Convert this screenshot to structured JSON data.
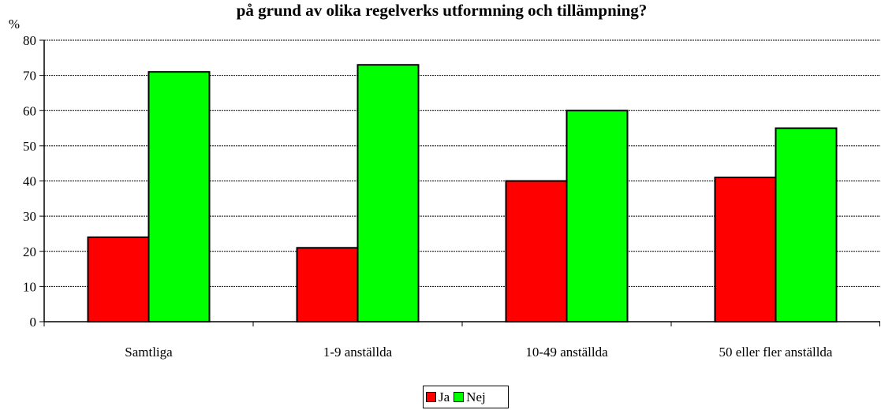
{
  "chart_data": {
    "type": "bar",
    "title": "på grund av olika regelverks utformning och tillämpning?",
    "ylabel": "%",
    "xlabel": "",
    "ylim": [
      0,
      80
    ],
    "yticks": [
      "0",
      "10",
      "20",
      "30",
      "40",
      "50",
      "60",
      "70",
      "80"
    ],
    "categories": [
      "Samtliga",
      "1-9 anställda",
      "10-49 anställda",
      "50 eller fler anställda"
    ],
    "series": [
      {
        "name": "Ja",
        "values": [
          24,
          21,
          40,
          41
        ],
        "color": "#ff0000"
      },
      {
        "name": "Nej",
        "values": [
          71,
          73,
          60,
          55
        ],
        "color": "#00ff00"
      }
    ],
    "grid": true,
    "legend_position": "bottom-center"
  }
}
